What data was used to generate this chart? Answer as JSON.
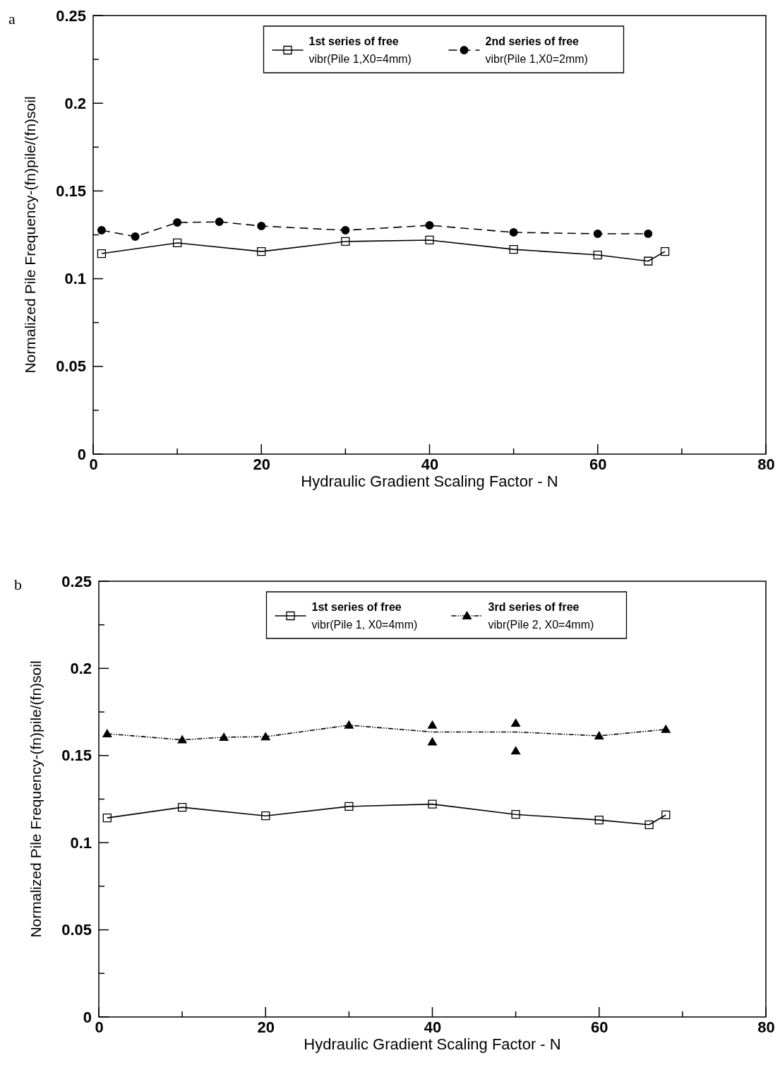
{
  "chart_data": [
    {
      "type": "line",
      "title": "a",
      "xlabel": "Hydraulic Gradient Scaling Factor - N",
      "ylabel": "Normalized Pile Frequency-(fn)pile/(fn)soil",
      "xlim": [
        0,
        80
      ],
      "ylim": [
        0,
        0.25
      ],
      "xticks": [
        0,
        {
          "value": 10,
          "label": null
        },
        20,
        {
          "value": 30,
          "label": null
        },
        40,
        {
          "value": 50,
          "label": null
        },
        60,
        {
          "value": 70,
          "label": null
        },
        80
      ],
      "yticks": [
        0,
        {
          "value": 0.025,
          "label": null
        },
        0.05,
        {
          "value": 0.075,
          "label": null
        },
        0.1,
        {
          "value": 0.125,
          "label": null
        },
        0.15,
        {
          "value": 0.175,
          "label": null
        },
        0.2,
        {
          "value": 0.225,
          "label": null
        },
        0.25
      ],
      "legend": "top",
      "grid": false,
      "series": [
        {
          "name": "1st series of free\nvibr(Pile 1,X0=4mm)",
          "type": "line",
          "color": "#000000",
          "marker": "square",
          "line_style": "solid",
          "x": [
            1,
            10,
            20,
            30,
            40,
            50,
            60,
            66,
            68
          ],
          "values": [
            0.1143,
            0.1204,
            0.1155,
            0.1212,
            0.122,
            0.1167,
            0.1135,
            0.11,
            0.1155
          ]
        },
        {
          "name": "2nd series of free\nvibr(Pile 1,X0=2mm)",
          "type": "line",
          "color": "#000000",
          "marker": "circle",
          "line_style": "dashed",
          "x": [
            1,
            5,
            10,
            15,
            20,
            30,
            40,
            50,
            60,
            66
          ],
          "values": [
            0.1276,
            0.124,
            0.132,
            0.1324,
            0.13,
            0.1276,
            0.1304,
            0.1264,
            0.1256,
            0.1256
          ]
        }
      ]
    },
    {
      "type": "line",
      "title": "b",
      "xlabel": "Hydraulic Gradient Scaling Factor - N",
      "ylabel": "Normalized Pile Frequency-(fn)pile/(fn)soil",
      "xlim": [
        0,
        80
      ],
      "ylim": [
        0,
        0.25
      ],
      "xticks": [
        0,
        {
          "value": 10,
          "label": null
        },
        20,
        {
          "value": 30,
          "label": null
        },
        40,
        {
          "value": 50,
          "label": null
        },
        60,
        {
          "value": 70,
          "label": null
        },
        80
      ],
      "yticks": [
        0,
        {
          "value": 0.025,
          "label": null
        },
        0.05,
        {
          "value": 0.075,
          "label": null
        },
        0.1,
        {
          "value": 0.125,
          "label": null
        },
        0.15,
        {
          "value": 0.175,
          "label": null
        },
        0.2,
        {
          "value": 0.225,
          "label": null
        },
        0.25
      ],
      "legend": "top",
      "grid": false,
      "series": [
        {
          "name": "1st series of free\nvibr(Pile 1, X0=4mm)",
          "type": "line",
          "color": "#000000",
          "marker": "square",
          "line_style": "solid",
          "x": [
            1,
            10,
            20,
            30,
            40,
            50,
            60,
            66,
            68
          ],
          "values": [
            0.1142,
            0.1203,
            0.1154,
            0.1208,
            0.1221,
            0.1162,
            0.113,
            0.1103,
            0.1159
          ]
        },
        {
          "name": "3rd series of free\nvibr(Pile 2, X0=4mm)",
          "type": "scatter",
          "color": "#000000",
          "marker": "triangle",
          "line_style": "dotted",
          "x": [
            1,
            10,
            15,
            20,
            30,
            40,
            40,
            50,
            50,
            60,
            68
          ],
          "values": [
            0.1625,
            0.159,
            0.1605,
            0.1608,
            0.1674,
            0.1674,
            0.1578,
            0.1686,
            0.1527,
            0.1613,
            0.165
          ]
        },
        {
          "type": "line",
          "color": "#000000",
          "marker": "none",
          "line_style": "dotted",
          "x": [
            1,
            10,
            15,
            20,
            30,
            40,
            50,
            60,
            68
          ],
          "values": [
            0.1625,
            0.159,
            0.1605,
            0.1608,
            0.1674,
            0.1635,
            0.1635,
            0.1613,
            0.165
          ]
        }
      ]
    }
  ]
}
